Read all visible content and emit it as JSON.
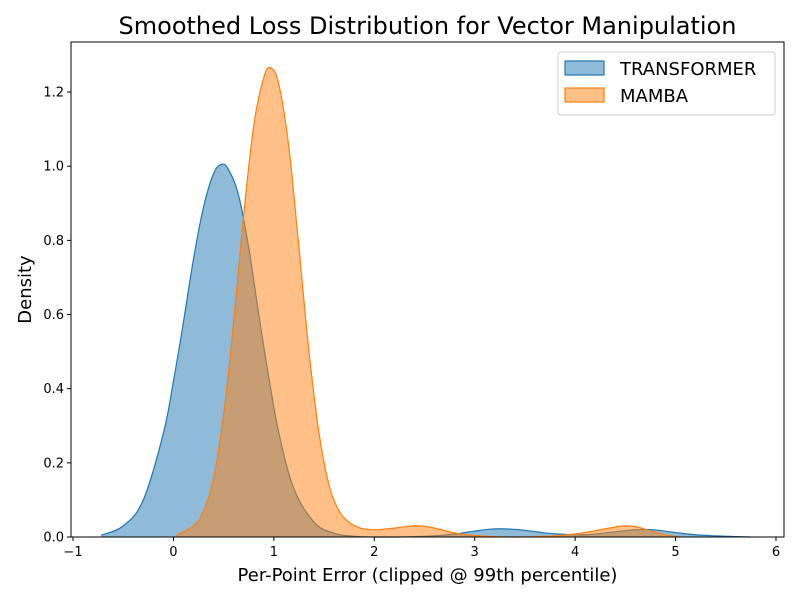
{
  "chart_data": {
    "type": "area",
    "title": "Smoothed Loss Distribution for Vector Manipulation",
    "xlabel": "Per-Point Error (clipped @ 99th percentile)",
    "ylabel": "Density",
    "xlim": [
      -1.02,
      6.08
    ],
    "ylim": [
      0,
      1.335
    ],
    "xticks": [
      -1,
      0,
      1,
      2,
      3,
      4,
      5,
      6
    ],
    "yticks": [
      0.0,
      0.2,
      0.4,
      0.6,
      0.8,
      1.0,
      1.2
    ],
    "legend_position": "top-right",
    "grid": false,
    "series": [
      {
        "name": "TRANSFORMER",
        "color": "#1f77b4",
        "fill": "#1f77b4",
        "x": [
          -0.72,
          -0.5,
          -0.3,
          -0.1,
          0.0,
          0.1,
          0.2,
          0.3,
          0.4,
          0.48,
          0.55,
          0.65,
          0.75,
          0.85,
          0.95,
          1.05,
          1.2,
          1.4,
          1.6,
          1.8,
          2.0,
          2.2,
          2.4,
          2.6,
          2.8,
          3.0,
          3.15,
          3.3,
          3.5,
          3.7,
          3.9,
          4.1,
          4.3,
          4.5,
          4.65,
          4.8,
          5.0,
          5.2,
          5.4,
          5.6,
          5.75
        ],
        "y": [
          0.005,
          0.03,
          0.1,
          0.28,
          0.42,
          0.58,
          0.75,
          0.89,
          0.98,
          1.005,
          0.99,
          0.92,
          0.78,
          0.6,
          0.43,
          0.28,
          0.13,
          0.04,
          0.01,
          0.002,
          0.0,
          0.0,
          0.001,
          0.003,
          0.008,
          0.016,
          0.021,
          0.022,
          0.018,
          0.011,
          0.007,
          0.006,
          0.011,
          0.017,
          0.02,
          0.019,
          0.012,
          0.006,
          0.003,
          0.001,
          0.0
        ]
      },
      {
        "name": "MAMBA",
        "color": "#ff7f0e",
        "fill": "#ff7f0e",
        "x": [
          0.03,
          0.2,
          0.3,
          0.4,
          0.5,
          0.6,
          0.7,
          0.8,
          0.9,
          0.97,
          1.05,
          1.15,
          1.25,
          1.35,
          1.45,
          1.55,
          1.65,
          1.75,
          1.85,
          1.95,
          2.05,
          2.2,
          2.35,
          2.45,
          2.6,
          2.8,
          3.0,
          3.2,
          3.4,
          3.6,
          3.8,
          4.0,
          4.2,
          4.4,
          4.5,
          4.6,
          4.75,
          4.9,
          5.05
        ],
        "y": [
          0.005,
          0.03,
          0.07,
          0.16,
          0.33,
          0.58,
          0.87,
          1.11,
          1.24,
          1.265,
          1.22,
          1.05,
          0.78,
          0.5,
          0.28,
          0.14,
          0.07,
          0.04,
          0.025,
          0.02,
          0.02,
          0.024,
          0.029,
          0.03,
          0.024,
          0.011,
          0.004,
          0.001,
          0.0,
          0.001,
          0.003,
          0.008,
          0.017,
          0.027,
          0.03,
          0.028,
          0.017,
          0.006,
          0.0
        ]
      }
    ]
  }
}
